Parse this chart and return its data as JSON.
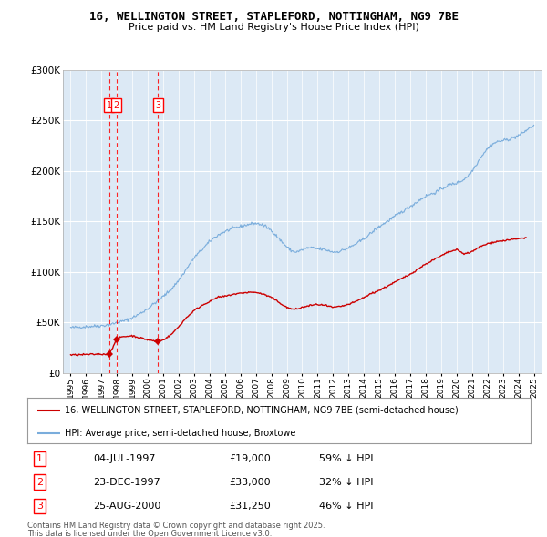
{
  "title": "16, WELLINGTON STREET, STAPLEFORD, NOTTINGHAM, NG9 7BE",
  "subtitle": "Price paid vs. HM Land Registry's House Price Index (HPI)",
  "ylim": [
    0,
    300000
  ],
  "yticks": [
    0,
    50000,
    100000,
    150000,
    200000,
    250000,
    300000
  ],
  "ytick_labels": [
    "£0",
    "£50K",
    "£100K",
    "£150K",
    "£200K",
    "£250K",
    "£300K"
  ],
  "plot_bg_color": "#dce9f5",
  "grid_color": "#ffffff",
  "red_line_color": "#cc0000",
  "blue_line_color": "#7aaddc",
  "legend_label_red": "16, WELLINGTON STREET, STAPLEFORD, NOTTINGHAM, NG9 7BE (semi-detached house)",
  "legend_label_blue": "HPI: Average price, semi-detached house, Broxtowe",
  "transactions": [
    {
      "num": 1,
      "date": "04-JUL-1997",
      "year": 1997.5,
      "price": 19000,
      "label": "£19,000",
      "pct": "59% ↓ HPI"
    },
    {
      "num": 2,
      "date": "23-DEC-1997",
      "year": 1997.97,
      "price": 33000,
      "label": "£33,000",
      "pct": "32% ↓ HPI"
    },
    {
      "num": 3,
      "date": "25-AUG-2000",
      "year": 2000.65,
      "price": 31250,
      "label": "£31,250",
      "pct": "46% ↓ HPI"
    }
  ],
  "footnote_line1": "Contains HM Land Registry data © Crown copyright and database right 2025.",
  "footnote_line2": "This data is licensed under the Open Government Licence v3.0.",
  "hpi_years": [
    1995.0,
    1995.5,
    1996.0,
    1996.5,
    1997.0,
    1997.5,
    1998.0,
    1998.5,
    1999.0,
    1999.5,
    2000.0,
    2000.5,
    2001.0,
    2001.5,
    2002.0,
    2002.5,
    2003.0,
    2003.5,
    2004.0,
    2004.5,
    2005.0,
    2005.5,
    2006.0,
    2006.5,
    2007.0,
    2007.5,
    2008.0,
    2008.5,
    2009.0,
    2009.5,
    2010.0,
    2010.5,
    2011.0,
    2011.5,
    2012.0,
    2012.5,
    2013.0,
    2013.5,
    2014.0,
    2014.5,
    2015.0,
    2015.5,
    2016.0,
    2016.5,
    2017.0,
    2017.5,
    2018.0,
    2018.5,
    2019.0,
    2019.5,
    2020.0,
    2020.5,
    2021.0,
    2021.5,
    2022.0,
    2022.5,
    2023.0,
    2023.5,
    2024.0,
    2024.5,
    2025.0
  ],
  "hpi_values": [
    45000,
    45500,
    46000,
    46500,
    47000,
    48000,
    50000,
    52000,
    55000,
    59000,
    64000,
    70000,
    76000,
    83000,
    92000,
    103000,
    114000,
    122000,
    130000,
    136000,
    140000,
    143000,
    145000,
    147000,
    148000,
    146000,
    141000,
    133000,
    125000,
    120000,
    122000,
    124000,
    123000,
    122000,
    120000,
    121000,
    124000,
    128000,
    133000,
    139000,
    145000,
    150000,
    155000,
    160000,
    165000,
    170000,
    175000,
    178000,
    182000,
    186000,
    188000,
    192000,
    200000,
    212000,
    222000,
    228000,
    230000,
    232000,
    235000,
    240000,
    245000
  ],
  "red_years": [
    1995.0,
    1995.5,
    1996.0,
    1996.5,
    1997.0,
    1997.5,
    1997.97,
    1998.3,
    1999.0,
    1999.5,
    2000.0,
    2000.65,
    2001.0,
    2001.5,
    2002.0,
    2002.5,
    2003.0,
    2003.5,
    2004.0,
    2004.5,
    2005.0,
    2005.5,
    2006.0,
    2006.5,
    2007.0,
    2007.5,
    2008.0,
    2008.5,
    2009.0,
    2009.5,
    2010.0,
    2010.5,
    2011.0,
    2011.5,
    2012.0,
    2012.5,
    2013.0,
    2013.5,
    2014.0,
    2014.5,
    2015.0,
    2015.5,
    2016.0,
    2016.5,
    2017.0,
    2017.5,
    2018.0,
    2018.5,
    2019.0,
    2019.5,
    2020.0,
    2020.5,
    2021.0,
    2021.5,
    2022.0,
    2022.5,
    2023.0,
    2023.5,
    2024.0,
    2024.5
  ],
  "red_values": [
    18000,
    18200,
    18500,
    18700,
    18800,
    19000,
    33000,
    36000,
    37000,
    35000,
    33000,
    31250,
    33000,
    38000,
    46000,
    55000,
    62000,
    67000,
    71000,
    75000,
    76000,
    78000,
    79000,
    80000,
    80000,
    78000,
    75000,
    70000,
    65000,
    63000,
    65000,
    67000,
    68000,
    67000,
    65000,
    66000,
    68000,
    71000,
    75000,
    79000,
    82000,
    86000,
    90000,
    94000,
    98000,
    103000,
    108000,
    112000,
    116000,
    120000,
    122000,
    118000,
    120000,
    125000,
    128000,
    130000,
    131000,
    132000,
    133000,
    134000
  ]
}
